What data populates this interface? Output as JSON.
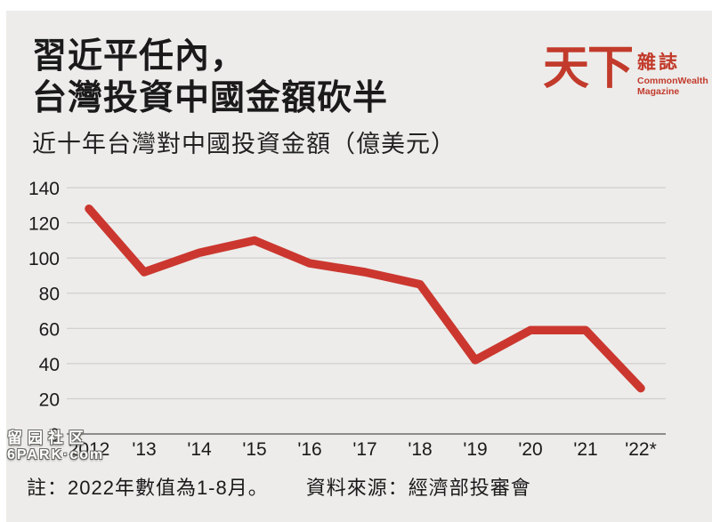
{
  "header": {
    "title_line1": "習近平任內，",
    "title_line2": "台灣投資中國金額砍半",
    "subtitle": "近十年台灣對中國投資金額（億美元）"
  },
  "logo": {
    "mark": "天下",
    "suffix": "雜誌",
    "english_line1": "CommonWealth",
    "english_line2": "Magazine",
    "color": "#c23a2b"
  },
  "chart_data": {
    "type": "line",
    "title": "近十年台灣對中國投資金額（億美元）",
    "categories": [
      "2012",
      "'13",
      "'14",
      "'15",
      "'16",
      "'17",
      "'18",
      "'19",
      "'20",
      "'21",
      "'22*"
    ],
    "values": [
      128,
      92,
      103,
      110,
      97,
      92,
      85,
      42,
      59,
      59,
      26
    ],
    "series_name": "台灣對中國投資金額",
    "xlabel": "",
    "ylabel": "億美元",
    "ylim": [
      0,
      140
    ],
    "yticks": [
      0,
      20,
      40,
      60,
      80,
      100,
      120,
      140
    ],
    "grid": true,
    "legend": "none",
    "line_color": "#cb372f",
    "grid_color": "#c8c8c8",
    "axis_color": "#8c8c8c"
  },
  "footer": {
    "note": "註：2022年數值為1-8月。",
    "source": "資料來源：經濟部投審會"
  },
  "watermark": {
    "line1": "留园社区",
    "line2": "6PARK·com"
  }
}
